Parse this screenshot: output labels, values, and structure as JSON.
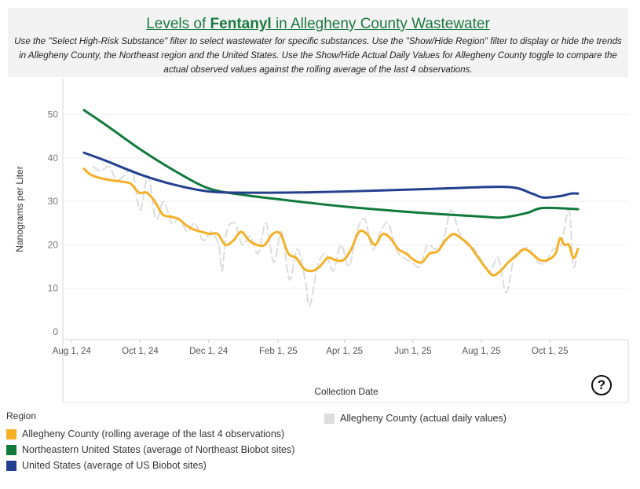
{
  "header": {
    "title_prefix": "Levels of ",
    "title_emphasis": "Fentanyl",
    "title_suffix": " in Allegheny County Wastewater",
    "subtitle": "Use the \"Select High-Risk Substance\" filter to select wastewater for  specific substances. Use the \"Show/Hide Region\" filter to display or hide the trends in Allegheny County, the Northeast region and the United States. Use the Show/Hide Actual Daily Values for Allegheny County toggle to compare the actual observed values against the rolling average of the last 4 observations."
  },
  "legend": {
    "title": "Region",
    "items": [
      {
        "label": "Allegheny County (rolling average of the last 4 observations)",
        "color": "#f5b027"
      },
      {
        "label": "Northeastern United States (average of Northeast Biobot sites)",
        "color": "#117a3b"
      },
      {
        "label": "United States (average of US Biobot sites)",
        "color": "#233f8f"
      }
    ],
    "secondary": {
      "label": "Allegheny County (actual daily values)",
      "color": "#dcdcdc"
    }
  },
  "help": {
    "label": "?"
  },
  "chart_data": {
    "type": "line",
    "title": "Levels of Fentanyl in Allegheny County Wastewater",
    "xlabel": "Collection Date",
    "ylabel": "Nanograms per Liter",
    "xlim": [
      "2024-07-01",
      "2025-11-30"
    ],
    "ylim": [
      0,
      55
    ],
    "y_ticks": [
      0,
      10,
      20,
      30,
      40,
      50
    ],
    "x_ticks": [
      {
        "date": "2024-08-01",
        "label": "Aug 1, 24"
      },
      {
        "date": "2024-10-01",
        "label": "Oct 1, 24"
      },
      {
        "date": "2024-12-01",
        "label": "Dec 1, 24"
      },
      {
        "date": "2025-02-01",
        "label": "Feb 1, 25"
      },
      {
        "date": "2025-04-01",
        "label": "Apr 1, 25"
      },
      {
        "date": "2025-06-01",
        "label": "Jun 1, 25"
      },
      {
        "date": "2025-08-01",
        "label": "Aug 1, 25"
      },
      {
        "date": "2025-10-01",
        "label": "Oct 1, 25"
      }
    ],
    "series": [
      {
        "name": "Allegheny County (actual daily values)",
        "color": "#dcdcdc",
        "dashed": true,
        "points": [
          [
            "2024-08-20",
            38
          ],
          [
            "2024-08-27",
            37
          ],
          [
            "2024-09-03",
            38
          ],
          [
            "2024-09-10",
            35
          ],
          [
            "2024-09-17",
            36
          ],
          [
            "2024-09-24",
            37
          ],
          [
            "2024-10-01",
            28
          ],
          [
            "2024-10-08",
            36
          ],
          [
            "2024-10-15",
            26
          ],
          [
            "2024-10-22",
            30
          ],
          [
            "2024-10-29",
            25
          ],
          [
            "2024-11-05",
            26
          ],
          [
            "2024-11-12",
            23
          ],
          [
            "2024-11-19",
            25
          ],
          [
            "2024-11-26",
            21
          ],
          [
            "2024-12-03",
            23
          ],
          [
            "2024-12-10",
            20
          ],
          [
            "2024-12-13",
            14
          ],
          [
            "2024-12-17",
            23
          ],
          [
            "2024-12-24",
            25
          ],
          [
            "2024-12-31",
            20
          ],
          [
            "2025-01-07",
            22
          ],
          [
            "2025-01-14",
            18
          ],
          [
            "2025-01-21",
            25
          ],
          [
            "2025-01-28",
            16
          ],
          [
            "2025-02-04",
            23
          ],
          [
            "2025-02-11",
            12
          ],
          [
            "2025-02-18",
            19
          ],
          [
            "2025-02-25",
            12
          ],
          [
            "2025-03-01",
            6
          ],
          [
            "2025-03-08",
            15
          ],
          [
            "2025-03-15",
            18
          ],
          [
            "2025-03-22",
            14
          ],
          [
            "2025-03-29",
            20
          ],
          [
            "2025-04-05",
            15
          ],
          [
            "2025-04-12",
            23
          ],
          [
            "2025-04-19",
            26
          ],
          [
            "2025-04-26",
            19
          ],
          [
            "2025-05-03",
            23
          ],
          [
            "2025-05-10",
            25
          ],
          [
            "2025-05-17",
            19
          ],
          [
            "2025-05-24",
            17
          ],
          [
            "2025-05-31",
            16
          ],
          [
            "2025-06-07",
            15
          ],
          [
            "2025-06-14",
            20
          ],
          [
            "2025-06-21",
            19
          ],
          [
            "2025-06-28",
            21
          ],
          [
            "2025-07-05",
            28
          ],
          [
            "2025-07-12",
            23
          ],
          [
            "2025-07-19",
            20
          ],
          [
            "2025-07-26",
            19
          ],
          [
            "2025-08-02",
            16
          ],
          [
            "2025-08-09",
            14
          ],
          [
            "2025-08-16",
            17
          ],
          [
            "2025-08-23",
            9
          ],
          [
            "2025-08-30",
            17
          ],
          [
            "2025-09-06",
            19
          ],
          [
            "2025-09-13",
            19
          ],
          [
            "2025-09-20",
            16
          ],
          [
            "2025-09-27",
            16
          ],
          [
            "2025-10-04",
            19
          ],
          [
            "2025-10-11",
            20
          ],
          [
            "2025-10-18",
            28
          ],
          [
            "2025-10-22",
            15
          ],
          [
            "2025-10-26",
            20
          ]
        ]
      },
      {
        "name": "Allegheny County (rolling average of the last 4 observations)",
        "color": "#f5b027",
        "points": [
          [
            "2024-08-12",
            37.5
          ],
          [
            "2024-08-19",
            36
          ],
          [
            "2024-09-02",
            35
          ],
          [
            "2024-09-16",
            34.5
          ],
          [
            "2024-09-23",
            34
          ],
          [
            "2024-09-30",
            32
          ],
          [
            "2024-10-07",
            32
          ],
          [
            "2024-10-14",
            30
          ],
          [
            "2024-10-21",
            27
          ],
          [
            "2024-10-28",
            26.5
          ],
          [
            "2024-11-04",
            26
          ],
          [
            "2024-11-11",
            24.5
          ],
          [
            "2024-11-18",
            23.5
          ],
          [
            "2024-11-25",
            23
          ],
          [
            "2024-12-02",
            22.5
          ],
          [
            "2024-12-09",
            22.5
          ],
          [
            "2024-12-16",
            20
          ],
          [
            "2024-12-23",
            21
          ],
          [
            "2024-12-30",
            23
          ],
          [
            "2025-01-06",
            21
          ],
          [
            "2025-01-13",
            20
          ],
          [
            "2025-01-20",
            20
          ],
          [
            "2025-01-27",
            22.5
          ],
          [
            "2025-02-03",
            22.5
          ],
          [
            "2025-02-10",
            18
          ],
          [
            "2025-02-17",
            17
          ],
          [
            "2025-02-24",
            14.5
          ],
          [
            "2025-03-03",
            14
          ],
          [
            "2025-03-10",
            15
          ],
          [
            "2025-03-17",
            17
          ],
          [
            "2025-03-24",
            16.5
          ],
          [
            "2025-03-31",
            16.5
          ],
          [
            "2025-04-07",
            19
          ],
          [
            "2025-04-14",
            23
          ],
          [
            "2025-04-21",
            22.5
          ],
          [
            "2025-04-28",
            20
          ],
          [
            "2025-05-05",
            22.5
          ],
          [
            "2025-05-12",
            21.5
          ],
          [
            "2025-05-19",
            19
          ],
          [
            "2025-05-26",
            18
          ],
          [
            "2025-06-02",
            16.5
          ],
          [
            "2025-06-09",
            16
          ],
          [
            "2025-06-16",
            18
          ],
          [
            "2025-06-23",
            18.5
          ],
          [
            "2025-06-30",
            21
          ],
          [
            "2025-07-07",
            22.5
          ],
          [
            "2025-07-14",
            21.5
          ],
          [
            "2025-07-21",
            20
          ],
          [
            "2025-07-28",
            17.5
          ],
          [
            "2025-08-04",
            15
          ],
          [
            "2025-08-11",
            13
          ],
          [
            "2025-08-18",
            14
          ],
          [
            "2025-08-25",
            16
          ],
          [
            "2025-09-01",
            17.5
          ],
          [
            "2025-09-08",
            19
          ],
          [
            "2025-09-15",
            18
          ],
          [
            "2025-09-22",
            16.5
          ],
          [
            "2025-09-29",
            16.5
          ],
          [
            "2025-10-06",
            18
          ],
          [
            "2025-10-10",
            21.5
          ],
          [
            "2025-10-14",
            20
          ],
          [
            "2025-10-18",
            20
          ],
          [
            "2025-10-22",
            17
          ],
          [
            "2025-10-26",
            19
          ]
        ]
      },
      {
        "name": "Northeastern United States (average of Northeast Biobot sites)",
        "color": "#117a3b",
        "points": [
          [
            "2024-08-12",
            51
          ],
          [
            "2024-09-01",
            47.5
          ],
          [
            "2024-10-01",
            42
          ],
          [
            "2024-11-01",
            37
          ],
          [
            "2024-12-01",
            33
          ],
          [
            "2025-01-01",
            31.5
          ],
          [
            "2025-02-01",
            30.5
          ],
          [
            "2025-04-01",
            28.8
          ],
          [
            "2025-06-01",
            27.5
          ],
          [
            "2025-08-01",
            26.5
          ],
          [
            "2025-08-20",
            26.3
          ],
          [
            "2025-09-10",
            27.3
          ],
          [
            "2025-09-25",
            28.5
          ],
          [
            "2025-10-26",
            28.2
          ]
        ]
      },
      {
        "name": "United States (average of US Biobot sites)",
        "color": "#233f8f",
        "points": [
          [
            "2024-08-12",
            41.2
          ],
          [
            "2024-09-01",
            39.3
          ],
          [
            "2024-10-01",
            36.2
          ],
          [
            "2024-11-01",
            33.8
          ],
          [
            "2024-12-01",
            32.3
          ],
          [
            "2025-01-01",
            32.0
          ],
          [
            "2025-03-01",
            32.1
          ],
          [
            "2025-05-01",
            32.5
          ],
          [
            "2025-07-01",
            33.0
          ],
          [
            "2025-08-25",
            33.3
          ],
          [
            "2025-09-15",
            31.8
          ],
          [
            "2025-09-25",
            30.9
          ],
          [
            "2025-10-10",
            31.2
          ],
          [
            "2025-10-20",
            31.8
          ],
          [
            "2025-10-26",
            31.8
          ]
        ]
      }
    ]
  }
}
